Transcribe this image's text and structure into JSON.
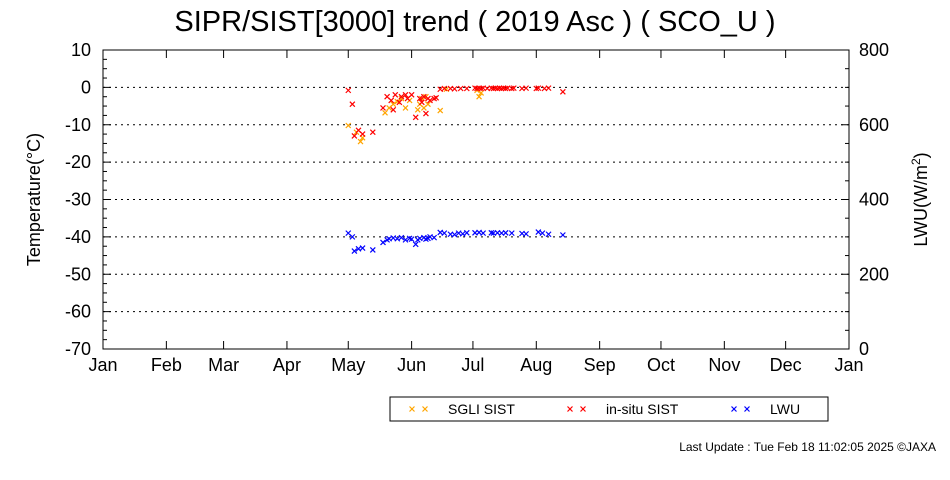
{
  "chart_data": {
    "type": "scatter",
    "title": "SIPR/SIST[3000] trend ( 2019 Asc ) ( SCO_U )",
    "ylabel": "Temperature(°C)",
    "y2label_base": "LWU(W/m",
    "y2label_sup": "2",
    "y2label_tail": ")",
    "ylim": [
      -70,
      10
    ],
    "y2lim": [
      0,
      800
    ],
    "yticks": [
      "10",
      "0",
      "-10",
      "-20",
      "-30",
      "-40",
      "-50",
      "-60",
      "-70"
    ],
    "y2ticks": [
      "800",
      "600",
      "400",
      "200",
      "0"
    ],
    "xticks": [
      "Jan",
      "Feb",
      "Mar",
      "Apr",
      "May",
      "Jun",
      "Jul",
      "Aug",
      "Sep",
      "Oct",
      "Nov",
      "Dec",
      "Jan"
    ],
    "x_unit": "day of year",
    "grid": "horizontal dotted",
    "legend_position": "bottom",
    "series": [
      {
        "name": "SGLI SIST",
        "axis": "left",
        "color": "#ffa500",
        "marker": "x",
        "points": [
          [
            120,
            -10.2
          ],
          [
            124,
            -12.0
          ],
          [
            126,
            -14.5
          ],
          [
            127,
            -13.5
          ],
          [
            138,
            -6.8
          ],
          [
            140,
            -5.5
          ],
          [
            142,
            -4.5
          ],
          [
            144,
            -3.8
          ],
          [
            146,
            -3.0
          ],
          [
            148,
            -5.5
          ],
          [
            150,
            -3.5
          ],
          [
            154,
            -6.0
          ],
          [
            155,
            -4.5
          ],
          [
            156,
            -3.0
          ],
          [
            157,
            -5.5
          ],
          [
            158,
            -2.5
          ],
          [
            159,
            -4.5
          ],
          [
            165,
            -6.2
          ],
          [
            168,
            -0.5
          ],
          [
            183,
            -0.8
          ],
          [
            184,
            -2.5
          ],
          [
            185,
            -1.5
          ]
        ]
      },
      {
        "name": "in-situ SIST",
        "axis": "left",
        "color": "#ff0000",
        "marker": "x",
        "points": [
          [
            120,
            -0.8
          ],
          [
            122,
            -4.5
          ],
          [
            123,
            -13.0
          ],
          [
            125,
            -11.5
          ],
          [
            127,
            -12.5
          ],
          [
            132,
            -12.0
          ],
          [
            137,
            -5.5
          ],
          [
            139,
            -2.5
          ],
          [
            141,
            -3.5
          ],
          [
            142,
            -6.0
          ],
          [
            143,
            -2.0
          ],
          [
            145,
            -4.0
          ],
          [
            146,
            -2.5
          ],
          [
            148,
            -2.0
          ],
          [
            149,
            -3.0
          ],
          [
            151,
            -2.0
          ],
          [
            153,
            -8.0
          ],
          [
            155,
            -3.0
          ],
          [
            156,
            -4.0
          ],
          [
            157,
            -2.5
          ],
          [
            158,
            -7.0
          ],
          [
            159,
            -3.0
          ],
          [
            160,
            -3.5
          ],
          [
            162,
            -3.0
          ],
          [
            163,
            -2.8
          ],
          [
            165,
            -0.5
          ],
          [
            167,
            -0.3
          ],
          [
            170,
            -0.3
          ],
          [
            172,
            -0.4
          ],
          [
            175,
            -0.3
          ],
          [
            178,
            -0.3
          ],
          [
            182,
            -0.2
          ],
          [
            183,
            -0.3
          ],
          [
            184,
            -0.2
          ],
          [
            185,
            -0.3
          ],
          [
            186,
            -0.2
          ],
          [
            188,
            -0.3
          ],
          [
            190,
            -0.2
          ],
          [
            191,
            -0.3
          ],
          [
            192,
            -0.2
          ],
          [
            193,
            -0.3
          ],
          [
            194,
            -0.2
          ],
          [
            195,
            -0.3
          ],
          [
            196,
            -0.2
          ],
          [
            197,
            -0.3
          ],
          [
            198,
            -0.2
          ],
          [
            200,
            -0.3
          ],
          [
            201,
            -0.2
          ],
          [
            205,
            -0.3
          ],
          [
            207,
            -0.2
          ],
          [
            212,
            -0.3
          ],
          [
            213,
            -0.2
          ],
          [
            216,
            -0.3
          ],
          [
            218,
            -0.2
          ],
          [
            225,
            -1.2
          ]
        ]
      },
      {
        "name": "LWU",
        "axis": "right",
        "color": "#0000ff",
        "marker": "x",
        "points": [
          [
            120,
            310
          ],
          [
            122,
            300
          ],
          [
            123,
            262
          ],
          [
            125,
            268
          ],
          [
            127,
            270
          ],
          [
            132,
            265
          ],
          [
            137,
            285
          ],
          [
            139,
            292
          ],
          [
            140,
            295
          ],
          [
            142,
            297
          ],
          [
            144,
            295
          ],
          [
            146,
            298
          ],
          [
            148,
            292
          ],
          [
            150,
            296
          ],
          [
            151,
            294
          ],
          [
            153,
            280
          ],
          [
            154,
            292
          ],
          [
            155,
            296
          ],
          [
            157,
            298
          ],
          [
            158,
            294
          ],
          [
            159,
            296
          ],
          [
            160,
            300
          ],
          [
            162,
            298
          ],
          [
            165,
            312
          ],
          [
            167,
            310
          ],
          [
            170,
            307
          ],
          [
            172,
            306
          ],
          [
            174,
            310
          ],
          [
            176,
            308
          ],
          [
            178,
            311
          ],
          [
            182,
            311
          ],
          [
            184,
            312
          ],
          [
            186,
            310
          ],
          [
            190,
            311
          ],
          [
            191,
            310
          ],
          [
            193,
            311
          ],
          [
            195,
            310
          ],
          [
            197,
            311
          ],
          [
            200,
            310
          ],
          [
            205,
            309
          ],
          [
            207,
            308
          ],
          [
            213,
            313
          ],
          [
            215,
            310
          ],
          [
            218,
            307
          ],
          [
            225,
            305
          ]
        ]
      }
    ]
  },
  "footer": {
    "text": "Last Update : Tue Feb 18 11:02:05 2025  ©JAXA"
  }
}
